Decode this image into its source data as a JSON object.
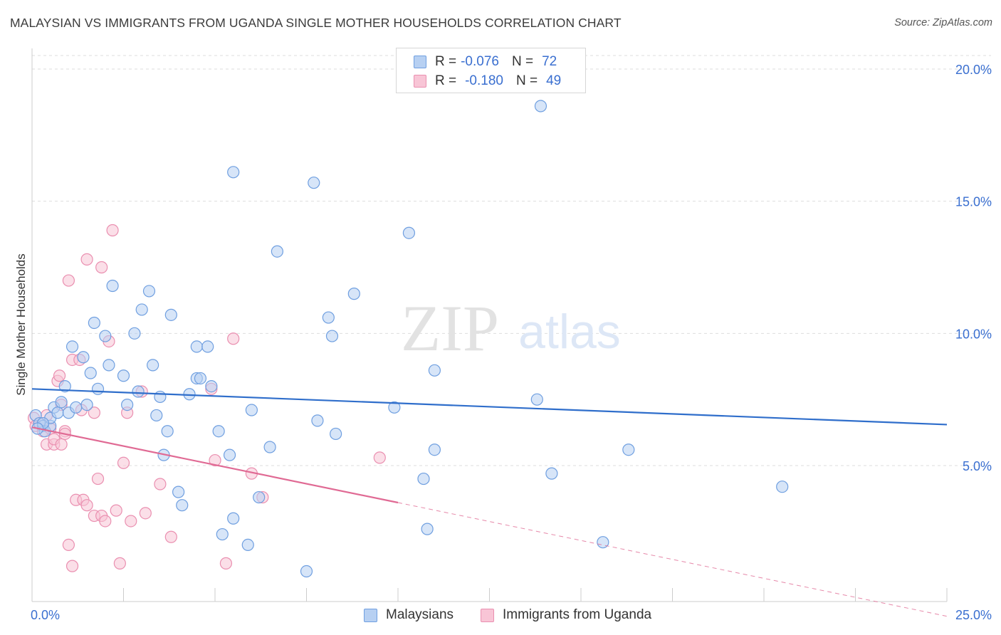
{
  "title": "MALAYSIAN VS IMMIGRANTS FROM UGANDA SINGLE MOTHER HOUSEHOLDS CORRELATION CHART",
  "source": "Source: ZipAtlas.com",
  "watermark": {
    "zip": "ZIP",
    "atlas": "atlas"
  },
  "legend": {
    "r_label": "R =",
    "n_label": "N =",
    "rows": [
      {
        "series": "Malaysians",
        "r": "-0.076",
        "n": "72"
      },
      {
        "series": "Immigrants from Uganda",
        "r": "-0.180",
        "n": "49"
      }
    ]
  },
  "colors": {
    "malaysians_fill": "#b7d0f2",
    "malaysians_stroke": "#6f9fe0",
    "malaysians_line": "#2f6ecb",
    "uganda_fill": "#f8c5d6",
    "uganda_stroke": "#ea8fb0",
    "uganda_line": "#e06a94",
    "axis_text": "#3a6fd0",
    "grid": "#dddddd"
  },
  "chart_data": {
    "type": "scatter",
    "title": "MALAYSIAN VS IMMIGRANTS FROM UGANDA SINGLE MOTHER HOUSEHOLDS CORRELATION CHART",
    "xlabel": "",
    "ylabel": "Single Mother Households",
    "xlim": [
      0,
      25
    ],
    "ylim": [
      0,
      20.5
    ],
    "x_tick_labels": [
      "0.0%",
      "25.0%"
    ],
    "y_ticks": [
      5,
      10,
      15,
      20
    ],
    "y_tick_labels": [
      "5.0%",
      "10.0%",
      "15.0%",
      "20.0%"
    ],
    "grid": true,
    "legend_position": "top-center",
    "series": [
      {
        "name": "Malaysians",
        "r": -0.076,
        "n": 72,
        "trend": {
          "x": [
            0,
            25
          ],
          "y": [
            7.9,
            6.55
          ]
        },
        "points": [
          [
            0.1,
            6.9
          ],
          [
            0.2,
            6.6
          ],
          [
            0.3,
            6.5
          ],
          [
            0.35,
            6.3
          ],
          [
            0.5,
            6.5
          ],
          [
            0.5,
            6.8
          ],
          [
            0.6,
            7.2
          ],
          [
            0.7,
            7.0
          ],
          [
            0.8,
            7.4
          ],
          [
            0.9,
            8.0
          ],
          [
            1.1,
            9.5
          ],
          [
            1.0,
            7.0
          ],
          [
            1.2,
            7.2
          ],
          [
            1.4,
            9.1
          ],
          [
            1.5,
            7.3
          ],
          [
            1.6,
            8.5
          ],
          [
            1.7,
            10.4
          ],
          [
            1.8,
            7.9
          ],
          [
            2.0,
            9.9
          ],
          [
            2.1,
            8.8
          ],
          [
            2.2,
            11.8
          ],
          [
            2.5,
            8.4
          ],
          [
            2.6,
            7.3
          ],
          [
            2.8,
            10.0
          ],
          [
            2.9,
            7.8
          ],
          [
            3.0,
            10.9
          ],
          [
            3.2,
            11.6
          ],
          [
            3.3,
            8.8
          ],
          [
            3.4,
            6.9
          ],
          [
            3.5,
            7.6
          ],
          [
            3.6,
            5.4
          ],
          [
            3.7,
            6.3
          ],
          [
            3.8,
            10.7
          ],
          [
            4.0,
            4.0
          ],
          [
            4.1,
            3.5
          ],
          [
            4.3,
            7.7
          ],
          [
            4.5,
            9.5
          ],
          [
            4.5,
            8.3
          ],
          [
            4.6,
            8.3
          ],
          [
            4.8,
            9.5
          ],
          [
            4.9,
            8.0
          ],
          [
            5.1,
            6.3
          ],
          [
            5.2,
            2.4
          ],
          [
            5.4,
            5.4
          ],
          [
            5.5,
            3.0
          ],
          [
            5.5,
            16.1
          ],
          [
            5.9,
            2.0
          ],
          [
            6.0,
            7.1
          ],
          [
            6.2,
            3.8
          ],
          [
            6.5,
            5.7
          ],
          [
            6.7,
            13.1
          ],
          [
            7.5,
            1.0
          ],
          [
            7.7,
            15.7
          ],
          [
            7.8,
            6.7
          ],
          [
            8.1,
            10.6
          ],
          [
            8.2,
            9.9
          ],
          [
            8.3,
            6.2
          ],
          [
            8.8,
            11.5
          ],
          [
            9.9,
            7.2
          ],
          [
            10.3,
            13.8
          ],
          [
            10.7,
            4.5
          ],
          [
            10.8,
            2.6
          ],
          [
            11.0,
            5.6
          ],
          [
            11.0,
            8.6
          ],
          [
            13.8,
            7.5
          ],
          [
            13.9,
            18.6
          ],
          [
            14.2,
            4.7
          ],
          [
            15.6,
            2.1
          ],
          [
            16.3,
            5.6
          ],
          [
            20.5,
            4.2
          ],
          [
            0.3,
            6.6
          ],
          [
            0.15,
            6.4
          ]
        ]
      },
      {
        "name": "Immigrants from Uganda",
        "r": -0.18,
        "n": 49,
        "trend": {
          "x": [
            0,
            10
          ],
          "y": [
            6.45,
            3.6
          ]
        },
        "trend_dashed": {
          "x": [
            10,
            25
          ],
          "y": [
            3.6,
            -0.7
          ]
        },
        "points": [
          [
            0.05,
            6.8
          ],
          [
            0.1,
            6.5
          ],
          [
            0.2,
            6.6
          ],
          [
            0.3,
            6.3
          ],
          [
            0.4,
            5.8
          ],
          [
            0.5,
            6.4
          ],
          [
            0.6,
            5.8
          ],
          [
            0.6,
            6.0
          ],
          [
            0.7,
            8.2
          ],
          [
            0.75,
            8.4
          ],
          [
            0.8,
            7.3
          ],
          [
            0.9,
            6.3
          ],
          [
            1.0,
            12.0
          ],
          [
            1.0,
            2.0
          ],
          [
            1.1,
            1.2
          ],
          [
            1.1,
            9.0
          ],
          [
            1.2,
            3.7
          ],
          [
            1.3,
            9.0
          ],
          [
            1.35,
            7.1
          ],
          [
            1.4,
            3.7
          ],
          [
            1.5,
            3.5
          ],
          [
            1.5,
            12.8
          ],
          [
            1.7,
            3.1
          ],
          [
            1.8,
            4.5
          ],
          [
            1.9,
            3.1
          ],
          [
            1.9,
            12.5
          ],
          [
            2.0,
            2.9
          ],
          [
            2.1,
            9.7
          ],
          [
            2.2,
            13.9
          ],
          [
            2.3,
            3.3
          ],
          [
            2.4,
            1.3
          ],
          [
            2.5,
            5.1
          ],
          [
            2.6,
            7.0
          ],
          [
            2.7,
            2.9
          ],
          [
            3.0,
            7.8
          ],
          [
            3.1,
            3.2
          ],
          [
            3.5,
            4.3
          ],
          [
            3.8,
            2.3
          ],
          [
            4.9,
            7.9
          ],
          [
            5.0,
            5.2
          ],
          [
            5.3,
            1.3
          ],
          [
            5.5,
            9.8
          ],
          [
            6.0,
            4.7
          ],
          [
            6.3,
            3.8
          ],
          [
            9.5,
            5.3
          ],
          [
            0.8,
            5.8
          ],
          [
            0.4,
            6.9
          ],
          [
            1.7,
            7.0
          ],
          [
            0.9,
            6.2
          ]
        ]
      }
    ]
  }
}
